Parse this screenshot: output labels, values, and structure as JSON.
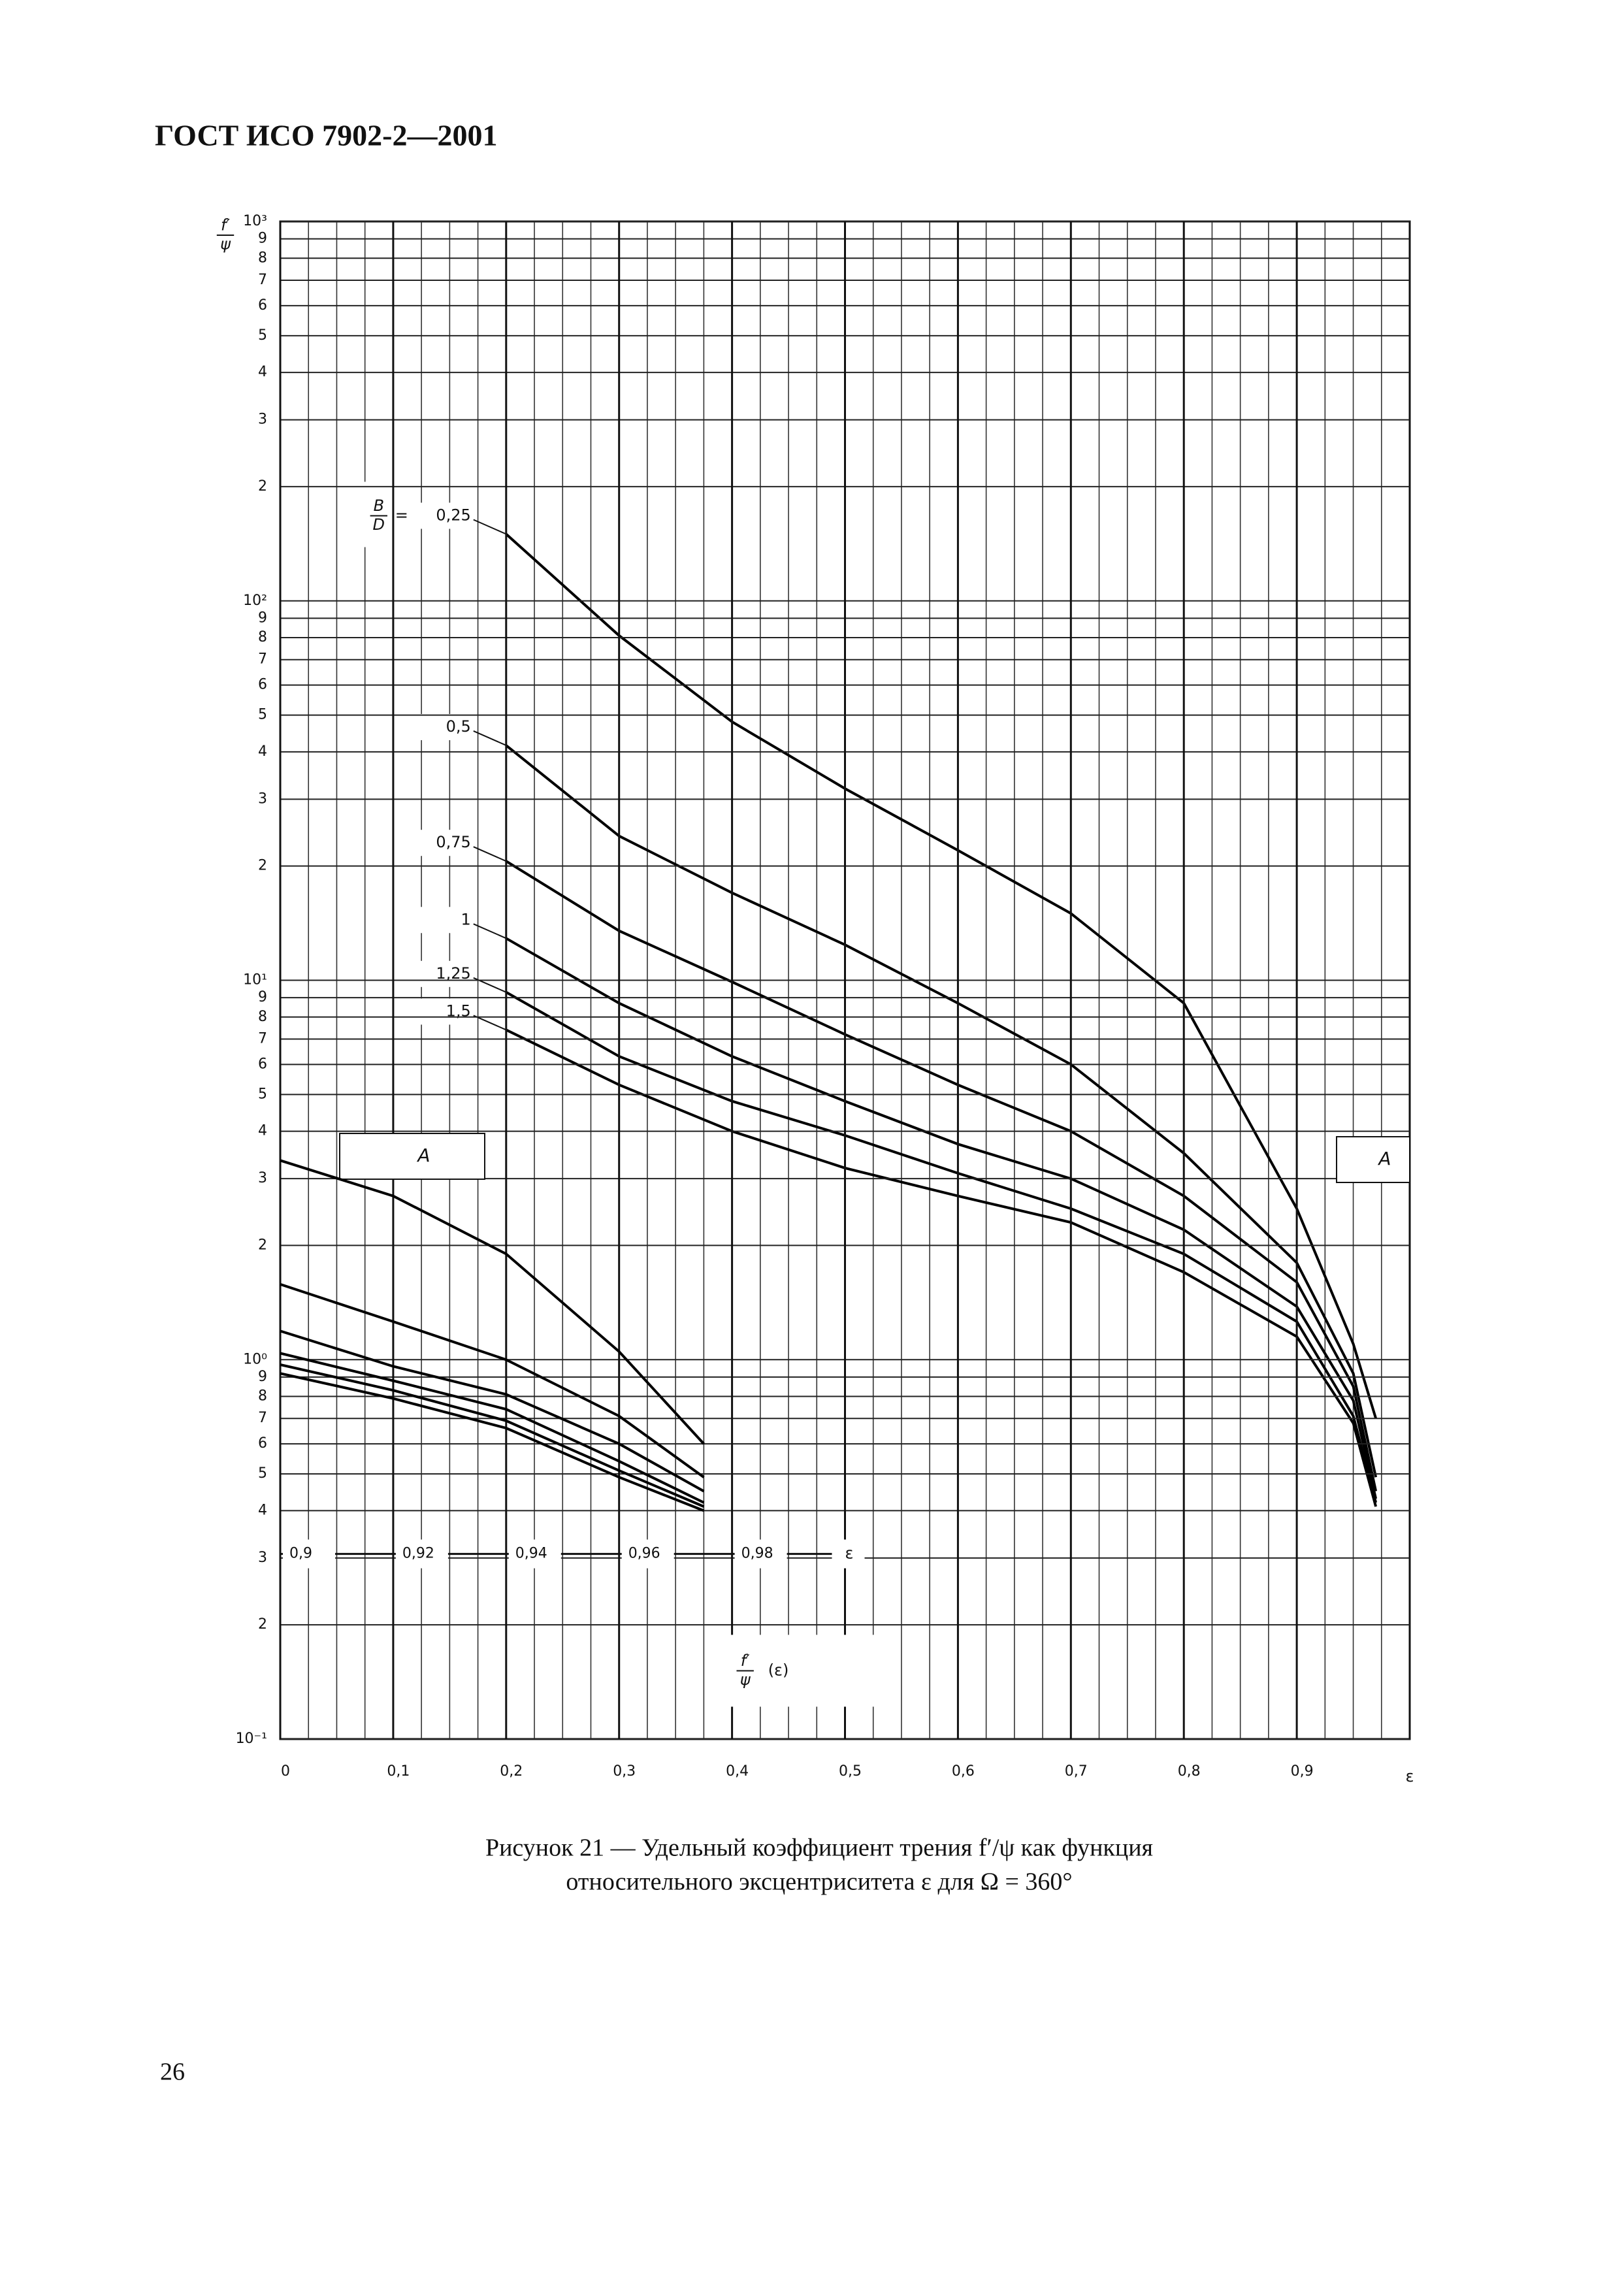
{
  "header": {
    "title": "ГОСТ ИСО 7902-2—2001"
  },
  "chart_data": [
    {
      "type": "line",
      "y_label": {
        "numerator": "f′",
        "denominator": "ψ"
      },
      "x_label": "ε",
      "legend_title": {
        "numerator": "B",
        "denominator": "D",
        "sign": "="
      },
      "annotations": [
        "A",
        "A"
      ],
      "x": [
        0.2,
        0.3,
        0.4,
        0.5,
        0.6,
        0.7,
        0.8,
        0.9,
        0.95,
        0.97
      ],
      "series": [
        {
          "name": "0,25",
          "color": "#000000",
          "values": [
            150,
            81,
            48,
            32,
            22,
            15,
            8.7,
            2.5,
            1.1,
            0.7
          ]
        },
        {
          "name": "0,5",
          "color": "#000000",
          "values": [
            41.6,
            24,
            17,
            12.4,
            8.7,
            6,
            3.5,
            1.8,
            0.92,
            0.49
          ]
        },
        {
          "name": "0,75",
          "color": "#000000",
          "values": [
            20.6,
            13.5,
            9.9,
            7.2,
            5.3,
            4,
            2.7,
            1.6,
            0.85,
            0.45
          ]
        },
        {
          "name": "1",
          "color": "#000000",
          "values": [
            12.9,
            8.7,
            6.3,
            4.8,
            3.7,
            3,
            2.2,
            1.38,
            0.78,
            0.43
          ]
        },
        {
          "name": "1,25",
          "color": "#000000",
          "values": [
            9.3,
            6.3,
            4.8,
            3.9,
            3.1,
            2.5,
            1.9,
            1.26,
            0.71,
            0.42
          ]
        },
        {
          "name": "1,5",
          "color": "#000000",
          "values": [
            7.4,
            5.3,
            4,
            3.2,
            2.7,
            2.3,
            1.7,
            1.15,
            0.68,
            0.41
          ]
        }
      ],
      "xlim": [
        0,
        1
      ],
      "ylim": [
        0.1,
        1000
      ],
      "log_y": true,
      "grid": true,
      "xticks": [
        0,
        {
          "value": 0.1,
          "label": "0,1"
        },
        {
          "value": 0.2,
          "label": "0,2"
        },
        {
          "value": 0.3,
          "label": "0,3"
        },
        {
          "value": 0.4,
          "label": "0,4"
        },
        {
          "value": 0.5,
          "label": "0,5"
        },
        {
          "value": 0.6,
          "label": "0,6"
        },
        {
          "value": 0.7,
          "label": "0,7"
        },
        {
          "value": 0.8,
          "label": "0,8"
        },
        {
          "value": 0.9,
          "label": "0,9"
        }
      ],
      "yticks": [
        {
          "value": 1000,
          "label": "10³"
        },
        {
          "value": 900,
          "label": "9"
        },
        {
          "value": 800,
          "label": "8"
        },
        {
          "value": 700,
          "label": "7"
        },
        {
          "value": 600,
          "label": "6"
        },
        {
          "value": 500,
          "label": "5"
        },
        {
          "value": 400,
          "label": "4"
        },
        {
          "value": 300,
          "label": "3"
        },
        {
          "value": 200,
          "label": "2"
        },
        {
          "value": 100,
          "label": "10²"
        },
        {
          "value": 90,
          "label": "9"
        },
        {
          "value": 80,
          "label": "8"
        },
        {
          "value": 70,
          "label": "7"
        },
        {
          "value": 60,
          "label": "6"
        },
        {
          "value": 50,
          "label": "5"
        },
        {
          "value": 40,
          "label": "4"
        },
        {
          "value": 30,
          "label": "3"
        },
        {
          "value": 20,
          "label": "2"
        },
        {
          "value": 10,
          "label": "10¹"
        },
        9,
        8,
        7,
        6,
        5,
        4,
        3,
        2,
        {
          "value": 1,
          "label": "10⁰"
        },
        {
          "value": 0.9,
          "label": "9"
        },
        {
          "value": 0.8,
          "label": "8"
        },
        {
          "value": 0.7,
          "label": "7"
        },
        {
          "value": 0.6,
          "label": "6"
        },
        {
          "value": 0.5,
          "label": "5"
        },
        {
          "value": 0.4,
          "label": "4"
        },
        {
          "value": 0.3,
          "label": "3"
        },
        {
          "value": 0.2,
          "label": "2"
        },
        {
          "value": 0.1,
          "label": "10⁻¹"
        }
      ]
    },
    {
      "type": "line",
      "x_label": "ε",
      "y_label": {
        "numerator": "f′",
        "denominator": "ψ",
        "argument": "(ε)"
      },
      "x": [
        0.9,
        0.92,
        0.94,
        0.96,
        0.975
      ],
      "series": [
        {
          "color": "#000000",
          "values": [
            3.35,
            2.7,
            1.9,
            1.05,
            0.6
          ]
        },
        {
          "color": "#000000",
          "values": [
            1.58,
            1.26,
            1,
            0.71,
            0.49
          ]
        },
        {
          "color": "#000000",
          "values": [
            1.19,
            0.96,
            0.81,
            0.6,
            0.45
          ]
        },
        {
          "color": "#000000",
          "values": [
            1.04,
            0.88,
            0.74,
            0.54,
            0.42
          ]
        },
        {
          "color": "#000000",
          "values": [
            0.97,
            0.83,
            0.69,
            0.51,
            0.41
          ]
        },
        {
          "color": "#000000",
          "values": [
            0.92,
            0.79,
            0.66,
            0.49,
            0.4
          ]
        }
      ],
      "xlim": [
        0.9,
        1.1
      ],
      "ylim": [
        0.1,
        1000
      ],
      "log_y": true,
      "xticks": [
        {
          "value": 0.9,
          "label": "0,9"
        },
        {
          "value": 0.92,
          "label": "0,92"
        },
        {
          "value": 0.94,
          "label": "0,94"
        },
        {
          "value": 0.96,
          "label": "0,96"
        },
        {
          "value": 0.98,
          "label": "0,98"
        }
      ]
    }
  ],
  "caption": {
    "line1": "Рисунок 21 — Удельный коэффициент трения f′/ψ как функция",
    "line2": "относительного эксцентриситета ε для Ω = 360°"
  },
  "page_number": "26"
}
